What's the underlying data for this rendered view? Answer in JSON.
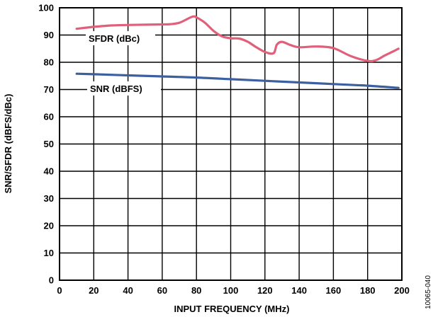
{
  "chart_data": {
    "type": "line",
    "xlabel": "INPUT FREQUENCY (MHz)",
    "ylabel": "SNR/SFDR (dBFS/dBc)",
    "xlim": [
      0,
      200
    ],
    "ylim": [
      0,
      100
    ],
    "xticks": [
      0,
      20,
      40,
      60,
      80,
      100,
      120,
      140,
      160,
      180,
      200
    ],
    "yticks": [
      0,
      10,
      20,
      30,
      40,
      50,
      60,
      70,
      80,
      90,
      100
    ],
    "grid": true,
    "figure_id": "10065-040",
    "series": [
      {
        "name": "SFDR (dBc)",
        "color": "#e0607a",
        "x": [
          10,
          20,
          30,
          40,
          50,
          60,
          65,
          70,
          75,
          78,
          80,
          85,
          90,
          95,
          100,
          105,
          110,
          115,
          120,
          125,
          127,
          130,
          135,
          140,
          150,
          160,
          170,
          180,
          185,
          190,
          195,
          198
        ],
        "y": [
          92.3,
          93.0,
          93.5,
          93.7,
          93.8,
          93.9,
          94.0,
          94.5,
          96.0,
          96.8,
          96.5,
          94.5,
          91.5,
          89.5,
          88.8,
          88.7,
          87.5,
          85.5,
          83.8,
          83.3,
          86.5,
          87.5,
          86.3,
          85.5,
          85.8,
          85.2,
          82.3,
          80.5,
          80.8,
          82.5,
          84.0,
          85.0
        ]
      },
      {
        "name": "SNR (dBFS)",
        "color": "#3c5fa0",
        "x": [
          10,
          20,
          40,
          60,
          80,
          100,
          120,
          140,
          160,
          180,
          198
        ],
        "y": [
          75.8,
          75.6,
          75.2,
          74.8,
          74.4,
          73.8,
          73.2,
          72.6,
          72.0,
          71.4,
          70.6
        ]
      }
    ]
  }
}
